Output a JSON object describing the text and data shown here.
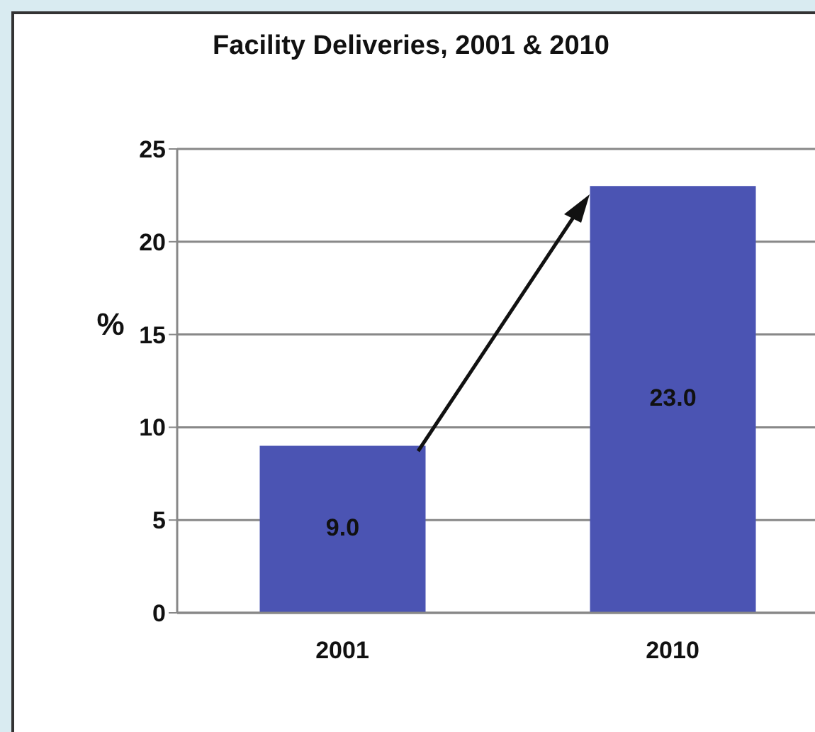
{
  "chart_data": {
    "type": "bar",
    "title": "Facility Deliveries, 2001 & 2010",
    "ylabel": "%",
    "categories": [
      "2001",
      "2010"
    ],
    "values": [
      9.0,
      23.0
    ],
    "value_labels": [
      "9.0",
      "23.0"
    ],
    "color": "#4b54b3",
    "ylim": [
      0,
      25
    ],
    "yticks": [
      0,
      5,
      10,
      15,
      20,
      25
    ],
    "grid": "y"
  }
}
